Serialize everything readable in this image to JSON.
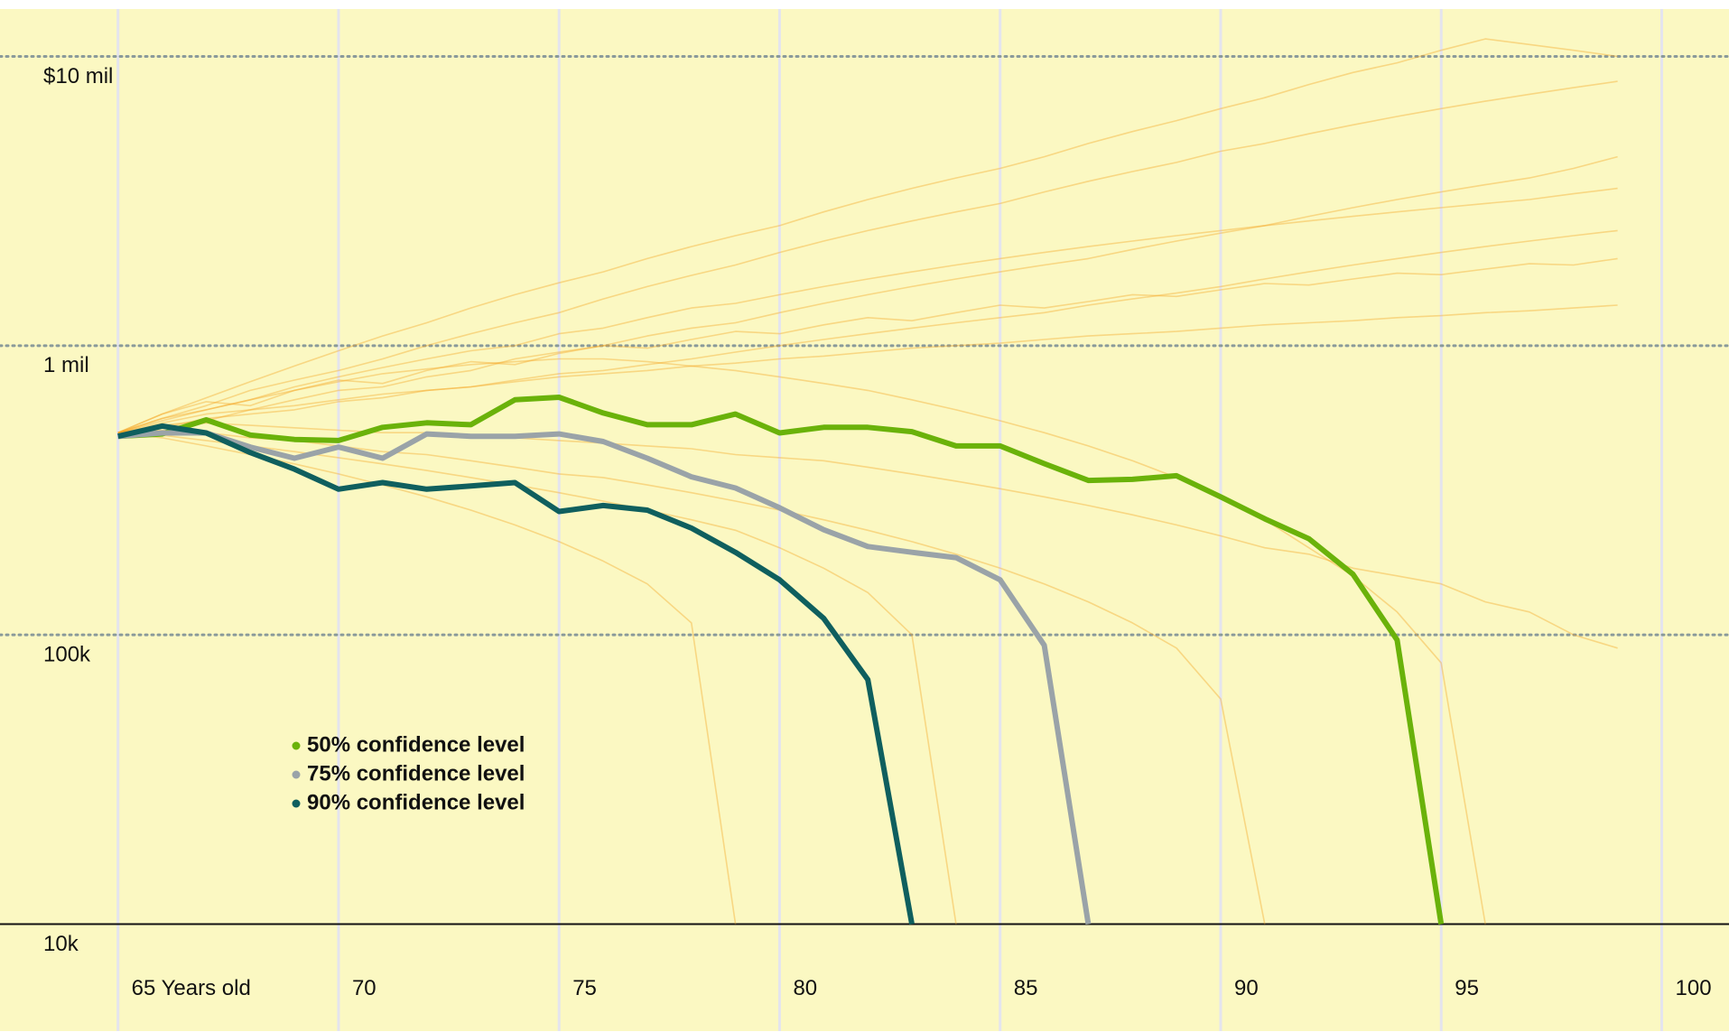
{
  "chart_data": {
    "type": "line",
    "log_y": true,
    "grid": true,
    "legend": "lower left",
    "x": [
      65,
      66,
      67,
      68,
      69,
      70,
      71,
      72,
      73,
      74,
      75,
      76,
      77,
      78,
      79,
      80,
      81,
      82,
      83,
      84,
      85,
      86,
      87,
      88,
      89,
      90,
      91,
      92,
      93,
      94,
      95,
      96,
      97,
      98,
      99
    ],
    "xlim": [
      62.325,
      101.525
    ],
    "xticks": [
      {
        "value": 65,
        "label": "65 Years old"
      },
      70,
      75,
      80,
      85,
      90,
      95,
      100
    ],
    "ylim": [
      10000,
      15000000
    ],
    "yticks": [
      {
        "value": 10000000,
        "label": "$10 mil"
      },
      {
        "value": 1000000,
        "label": "1 mil"
      },
      {
        "value": 100000,
        "label": "100k"
      },
      {
        "value": 10000,
        "label": "10k"
      }
    ],
    "series": [
      {
        "color": "#f5a623",
        "values": [
          500000,
          560000,
          620000,
          700000,
          760000,
          820000,
          900000,
          1000000,
          1100000,
          1200000,
          1300000,
          1450000,
          1600000,
          1750000,
          1900000,
          2100000,
          2300000,
          2500000,
          2700000,
          2900000,
          3100000,
          3400000,
          3700000,
          4000000,
          4300000,
          4700000,
          5000000,
          5400000,
          5800000,
          6200000,
          6600000,
          7000000,
          7400000,
          7800000,
          8200000
        ]
      },
      {
        "color": "#f5a623",
        "values": [
          500000,
          540000,
          580000,
          600000,
          650000,
          700000,
          720000,
          780000,
          820000,
          900000,
          950000,
          1000000,
          1080000,
          1150000,
          1200000,
          1300000,
          1400000,
          1500000,
          1600000,
          1700000,
          1800000,
          1900000,
          2000000,
          2150000,
          2300000,
          2450000,
          2600000,
          2800000,
          3000000,
          3200000,
          3400000,
          3600000,
          3800000,
          4100000,
          4500000
        ]
      },
      {
        "color": "#f5a623",
        "values": [
          500000,
          520000,
          560000,
          580000,
          600000,
          640000,
          660000,
          700000,
          720000,
          760000,
          800000,
          820000,
          860000,
          900000,
          950000,
          1000000,
          1050000,
          1100000,
          1150000,
          1200000,
          1250000,
          1300000,
          1380000,
          1450000,
          1520000,
          1600000,
          1700000,
          1800000,
          1900000,
          2000000,
          2100000,
          2200000,
          2300000,
          2400000,
          2500000
        ]
      },
      {
        "color": "#f5a623",
        "values": [
          500000,
          530000,
          550000,
          600000,
          620000,
          650000,
          680000,
          700000,
          720000,
          750000,
          780000,
          800000,
          820000,
          850000,
          870000,
          900000,
          920000,
          950000,
          980000,
          1000000,
          1020000,
          1050000,
          1080000,
          1100000,
          1120000,
          1150000,
          1180000,
          1200000,
          1220000,
          1250000,
          1270000,
          1300000,
          1320000,
          1350000,
          1380000
        ]
      },
      {
        "color": "#f5a623",
        "values": [
          500000,
          520000,
          540000,
          530000,
          520000,
          510000,
          500000,
          500000,
          490000,
          480000,
          470000,
          460000,
          450000,
          440000,
          420000,
          410000,
          400000,
          380000,
          360000,
          340000,
          320000,
          300000,
          280000,
          260000,
          240000,
          220000,
          200000,
          190000,
          170000,
          160000,
          150000,
          130000,
          120000,
          100000,
          90000
        ]
      },
      {
        "color": "#f5a623",
        "values": [
          500000,
          510000,
          500000,
          480000,
          470000,
          450000,
          430000,
          420000,
          400000,
          380000,
          360000,
          350000,
          330000,
          310000,
          290000,
          270000,
          250000,
          230000,
          210000,
          190000,
          170000,
          150000,
          130000,
          110000,
          90000,
          60000,
          10000,
          null,
          null,
          null,
          null,
          null,
          null,
          null,
          null
        ]
      },
      {
        "color": "#f5a623",
        "values": [
          500000,
          490000,
          470000,
          450000,
          430000,
          410000,
          390000,
          370000,
          350000,
          330000,
          310000,
          290000,
          270000,
          250000,
          230000,
          200000,
          170000,
          140000,
          100000,
          10000,
          null,
          null,
          null,
          null,
          null,
          null,
          null,
          null,
          null,
          null,
          null,
          null,
          null,
          null,
          null
        ]
      },
      {
        "color": "#f5a623",
        "values": [
          500000,
          580000,
          640000,
          620000,
          700000,
          760000,
          740000,
          820000,
          880000,
          860000,
          940000,
          1000000,
          980000,
          1050000,
          1120000,
          1100000,
          1180000,
          1250000,
          1220000,
          1300000,
          1380000,
          1350000,
          1420000,
          1500000,
          1480000,
          1560000,
          1640000,
          1620000,
          1700000,
          1780000,
          1760000,
          1840000,
          1920000,
          1900000,
          2000000
        ]
      },
      {
        "color": "#f5a623",
        "values": [
          500000,
          550000,
          600000,
          650000,
          700000,
          750000,
          800000,
          830000,
          860000,
          880000,
          900000,
          900000,
          880000,
          850000,
          820000,
          780000,
          740000,
          700000,
          650000,
          600000,
          550000,
          500000,
          450000,
          400000,
          350000,
          300000,
          250000,
          200000,
          160000,
          120000,
          80000,
          10000,
          null,
          null,
          null
        ]
      },
      {
        "color": "#f5a623",
        "values": [
          500000,
          560000,
          600000,
          650000,
          720000,
          780000,
          840000,
          900000,
          960000,
          1000000,
          1100000,
          1150000,
          1250000,
          1350000,
          1400000,
          1500000,
          1600000,
          1700000,
          1800000,
          1900000,
          2000000,
          2100000,
          2200000,
          2300000,
          2400000,
          2500000,
          2600000,
          2700000,
          2800000,
          2900000,
          3000000,
          3100000,
          3200000,
          3350000,
          3500000
        ]
      },
      {
        "color": "#f5a623",
        "values": [
          500000,
          480000,
          450000,
          420000,
          390000,
          360000,
          330000,
          300000,
          270000,
          240000,
          210000,
          180000,
          150000,
          110000,
          10000,
          null,
          null,
          null,
          null,
          null,
          null,
          null,
          null,
          null,
          null,
          null,
          null,
          null,
          null,
          null,
          null,
          null,
          null,
          null,
          null
        ]
      },
      {
        "color": "#f5a623",
        "values": [
          500000,
          580000,
          660000,
          750000,
          850000,
          960000,
          1080000,
          1200000,
          1350000,
          1500000,
          1650000,
          1800000,
          2000000,
          2200000,
          2400000,
          2600000,
          2900000,
          3200000,
          3500000,
          3800000,
          4100000,
          4500000,
          5000000,
          5500000,
          6000000,
          6600000,
          7200000,
          8000000,
          8800000,
          9500000,
          10500000,
          11500000,
          11000000,
          10500000,
          10000000
        ]
      },
      {
        "name": "50% confidence level",
        "color": "#6ab20a",
        "values": [
          486000,
          495000,
          554000,
          491000,
          474000,
          470000,
          522000,
          541000,
          533000,
          650000,
          663000,
          585000,
          533000,
          533000,
          580000,
          499000,
          522000,
          522000,
          504000,
          450000,
          450000,
          391000,
          342000,
          345000,
          355000,
          300000,
          252000,
          215000,
          162000,
          96000,
          10000,
          null,
          null,
          null,
          null
        ]
      },
      {
        "name": "75% confidence level",
        "color": "#9aa3a8",
        "values": [
          486000,
          499000,
          499000,
          446000,
          408000,
          446000,
          408000,
          495000,
          486000,
          486000,
          495000,
          466000,
          408000,
          352000,
          322000,
          275000,
          231000,
          202000,
          193000,
          185000,
          155000,
          92000,
          10000,
          null,
          null,
          null,
          null,
          null,
          null,
          null,
          null,
          null,
          null,
          null,
          null
        ]
      },
      {
        "name": "90% confidence level",
        "color": "#0f5f5e",
        "values": [
          486000,
          527000,
          499000,
          427000,
          374000,
          319000,
          336000,
          319000,
          327000,
          336000,
          267000,
          280000,
          270000,
          234000,
          193000,
          155000,
          114000,
          70000,
          10000,
          null,
          null,
          null,
          null,
          null,
          null,
          null,
          null,
          null,
          null,
          null,
          null,
          null,
          null,
          null,
          null
        ]
      }
    ]
  }
}
